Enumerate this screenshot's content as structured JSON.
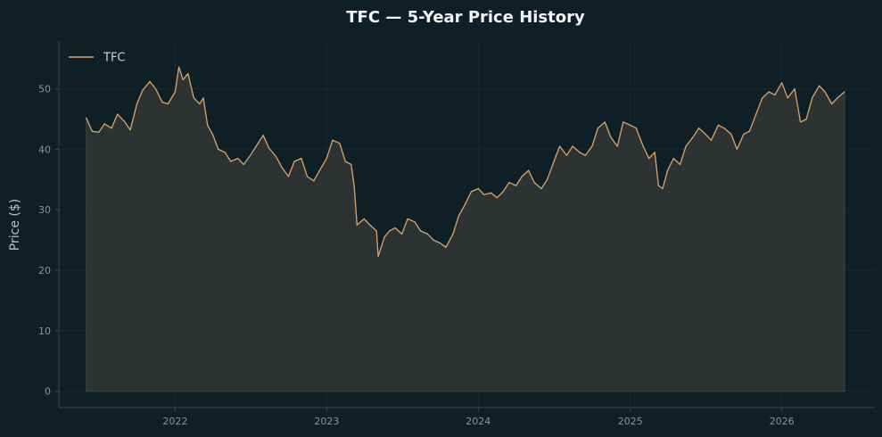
{
  "chart_data": {
    "type": "line",
    "title": "TFC — 5-Year Price History",
    "xlabel": "",
    "ylabel": "Price ($)",
    "ylim": [
      -2.7,
      57.9
    ],
    "xlim": [
      "2021-03-27",
      "2026-08-13"
    ],
    "yticks": [
      0,
      10,
      20,
      30,
      40,
      50
    ],
    "xticks": [
      "2022",
      "2023",
      "2024",
      "2025",
      "2026"
    ],
    "grid": true,
    "legend": "top-left",
    "fill_under_line": true,
    "colors": {
      "line": "#d9a56b",
      "fill": "#2d3333",
      "background": "#0f1f26",
      "grid": "#17282f"
    },
    "series": [
      {
        "name": "TFC",
        "points": [
          [
            "2021-06-01",
            45.2
          ],
          [
            "2021-06-15",
            43.0
          ],
          [
            "2021-07-01",
            42.8
          ],
          [
            "2021-07-15",
            44.2
          ],
          [
            "2021-08-01",
            43.5
          ],
          [
            "2021-08-15",
            45.8
          ],
          [
            "2021-09-01",
            44.6
          ],
          [
            "2021-09-15",
            43.2
          ],
          [
            "2021-10-01",
            47.5
          ],
          [
            "2021-10-15",
            49.8
          ],
          [
            "2021-11-01",
            51.2
          ],
          [
            "2021-11-15",
            50.0
          ],
          [
            "2021-12-01",
            47.8
          ],
          [
            "2021-12-15",
            47.5
          ],
          [
            "2022-01-01",
            49.5
          ],
          [
            "2022-01-10",
            53.6
          ],
          [
            "2022-01-20",
            51.5
          ],
          [
            "2022-02-01",
            52.5
          ],
          [
            "2022-02-15",
            48.5
          ],
          [
            "2022-03-01",
            47.5
          ],
          [
            "2022-03-10",
            48.5
          ],
          [
            "2022-03-20",
            44.0
          ],
          [
            "2022-04-01",
            42.5
          ],
          [
            "2022-04-15",
            40.0
          ],
          [
            "2022-05-01",
            39.5
          ],
          [
            "2022-05-15",
            38.0
          ],
          [
            "2022-06-01",
            38.5
          ],
          [
            "2022-06-15",
            37.5
          ],
          [
            "2022-07-01",
            39.0
          ],
          [
            "2022-07-15",
            40.5
          ],
          [
            "2022-08-01",
            42.3
          ],
          [
            "2022-08-15",
            40.2
          ],
          [
            "2022-09-01",
            38.8
          ],
          [
            "2022-09-15",
            37.0
          ],
          [
            "2022-10-01",
            35.5
          ],
          [
            "2022-10-15",
            38.0
          ],
          [
            "2022-11-01",
            38.5
          ],
          [
            "2022-11-15",
            35.5
          ],
          [
            "2022-12-01",
            34.8
          ],
          [
            "2022-12-15",
            36.5
          ],
          [
            "2023-01-01",
            38.5
          ],
          [
            "2023-01-15",
            41.5
          ],
          [
            "2023-02-01",
            41.0
          ],
          [
            "2023-02-15",
            38.0
          ],
          [
            "2023-03-01",
            37.5
          ],
          [
            "2023-03-08",
            34.0
          ],
          [
            "2023-03-15",
            27.5
          ],
          [
            "2023-04-01",
            28.5
          ],
          [
            "2023-04-15",
            27.5
          ],
          [
            "2023-05-01",
            26.5
          ],
          [
            "2023-05-05",
            22.3
          ],
          [
            "2023-05-20",
            25.5
          ],
          [
            "2023-06-01",
            26.5
          ],
          [
            "2023-06-15",
            27.0
          ],
          [
            "2023-07-01",
            26.0
          ],
          [
            "2023-07-15",
            28.5
          ],
          [
            "2023-08-01",
            28.0
          ],
          [
            "2023-08-15",
            26.5
          ],
          [
            "2023-09-01",
            26.0
          ],
          [
            "2023-09-15",
            25.0
          ],
          [
            "2023-10-01",
            24.5
          ],
          [
            "2023-10-15",
            23.8
          ],
          [
            "2023-11-01",
            26.0
          ],
          [
            "2023-11-15",
            29.0
          ],
          [
            "2023-12-01",
            31.0
          ],
          [
            "2023-12-15",
            33.0
          ],
          [
            "2024-01-01",
            33.5
          ],
          [
            "2024-01-15",
            32.5
          ],
          [
            "2024-02-01",
            32.8
          ],
          [
            "2024-02-15",
            32.0
          ],
          [
            "2024-03-01",
            33.0
          ],
          [
            "2024-03-15",
            34.5
          ],
          [
            "2024-04-01",
            34.0
          ],
          [
            "2024-04-15",
            35.5
          ],
          [
            "2024-05-01",
            36.5
          ],
          [
            "2024-05-15",
            34.5
          ],
          [
            "2024-06-01",
            33.5
          ],
          [
            "2024-06-15",
            35.0
          ],
          [
            "2024-07-01",
            38.0
          ],
          [
            "2024-07-15",
            40.5
          ],
          [
            "2024-08-01",
            39.0
          ],
          [
            "2024-08-15",
            40.5
          ],
          [
            "2024-09-01",
            39.5
          ],
          [
            "2024-09-15",
            39.0
          ],
          [
            "2024-10-01",
            40.5
          ],
          [
            "2024-10-15",
            43.5
          ],
          [
            "2024-11-01",
            44.5
          ],
          [
            "2024-11-15",
            42.0
          ],
          [
            "2024-12-01",
            40.5
          ],
          [
            "2024-12-15",
            44.5
          ],
          [
            "2025-01-01",
            44.0
          ],
          [
            "2025-01-15",
            43.5
          ],
          [
            "2025-02-01",
            40.5
          ],
          [
            "2025-02-15",
            38.5
          ],
          [
            "2025-03-01",
            39.5
          ],
          [
            "2025-03-10",
            34.0
          ],
          [
            "2025-03-20",
            33.5
          ],
          [
            "2025-04-01",
            36.5
          ],
          [
            "2025-04-15",
            38.5
          ],
          [
            "2025-05-01",
            37.5
          ],
          [
            "2025-05-15",
            40.5
          ],
          [
            "2025-06-01",
            42.0
          ],
          [
            "2025-06-15",
            43.5
          ],
          [
            "2025-07-01",
            42.5
          ],
          [
            "2025-07-15",
            41.5
          ],
          [
            "2025-08-01",
            44.0
          ],
          [
            "2025-08-15",
            43.5
          ],
          [
            "2025-09-01",
            42.5
          ],
          [
            "2025-09-15",
            40.0
          ],
          [
            "2025-10-01",
            42.5
          ],
          [
            "2025-10-15",
            43.0
          ],
          [
            "2025-11-01",
            46.0
          ],
          [
            "2025-11-15",
            48.5
          ],
          [
            "2025-12-01",
            49.5
          ],
          [
            "2025-12-15",
            49.0
          ],
          [
            "2026-01-01",
            51.0
          ],
          [
            "2026-01-15",
            48.5
          ],
          [
            "2026-02-01",
            50.0
          ],
          [
            "2026-02-15",
            44.5
          ],
          [
            "2026-03-01",
            45.0
          ],
          [
            "2026-03-15",
            48.5
          ],
          [
            "2026-04-01",
            50.5
          ],
          [
            "2026-04-15",
            49.5
          ],
          [
            "2026-05-01",
            47.5
          ],
          [
            "2026-05-15",
            48.5
          ],
          [
            "2026-06-01",
            49.5
          ]
        ]
      }
    ]
  }
}
